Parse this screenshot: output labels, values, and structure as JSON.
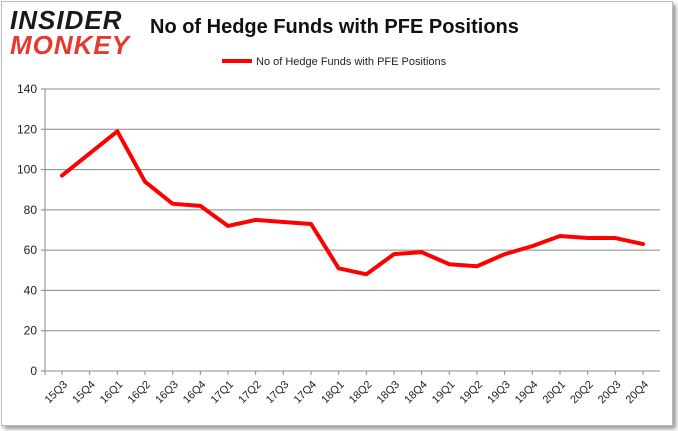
{
  "logo": {
    "line1": "INSIDER",
    "line2": "MONKEY"
  },
  "chart_data": {
    "type": "line",
    "title": "No of Hedge Funds with PFE Positions",
    "xlabel": "",
    "ylabel": "",
    "ylim": [
      0,
      140
    ],
    "yticks": [
      0,
      20,
      40,
      60,
      80,
      100,
      120,
      140
    ],
    "grid": true,
    "legend": "top-center",
    "categories": [
      "15Q3",
      "15Q4",
      "16Q1",
      "16Q2",
      "16Q3",
      "16Q4",
      "17Q1",
      "17Q2",
      "17Q3",
      "17Q4",
      "18Q1",
      "18Q2",
      "18Q3",
      "18Q4",
      "19Q1",
      "19Q2",
      "19Q3",
      "19Q4",
      "20Q1",
      "20Q2",
      "20Q3",
      "20Q4"
    ],
    "series": [
      {
        "name": "No of Hedge Funds with PFE Positions",
        "color": "#ff0000",
        "values": [
          97,
          108,
          119,
          94,
          83,
          82,
          72,
          75,
          74,
          73,
          51,
          48,
          58,
          59,
          53,
          52,
          58,
          62,
          67,
          66,
          66,
          63
        ]
      }
    ]
  }
}
